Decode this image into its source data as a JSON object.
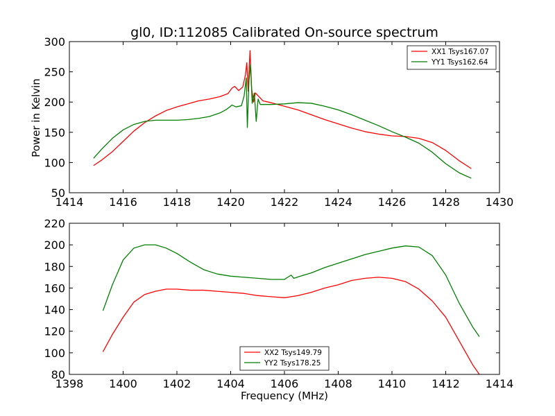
{
  "colors": {
    "red_series": "#ff0000",
    "green_series": "#007f00",
    "axis": "#000000",
    "background": "#ffffff"
  },
  "chart_data": [
    {
      "type": "line",
      "title": "gl0, ID:112085 Calibrated On-source spectrum",
      "xlabel": "",
      "ylabel": "Power in Kelvin",
      "xlim": [
        1414,
        1430
      ],
      "ylim": [
        50,
        300
      ],
      "xticks": [
        1414,
        1416,
        1418,
        1420,
        1422,
        1424,
        1426,
        1428,
        1430
      ],
      "yticks": [
        50,
        100,
        150,
        200,
        250,
        300
      ],
      "grid": false,
      "legend_position": "top-right",
      "series": [
        {
          "name": "XX1 Tsys167.07",
          "color": "#ff0000",
          "points": [
            [
              1414.9,
              95
            ],
            [
              1415.2,
              104
            ],
            [
              1415.6,
              118
            ],
            [
              1416.0,
              135
            ],
            [
              1416.4,
              152
            ],
            [
              1416.8,
              166
            ],
            [
              1417.2,
              177
            ],
            [
              1417.6,
              186
            ],
            [
              1418.0,
              192
            ],
            [
              1418.4,
              197
            ],
            [
              1418.8,
              202
            ],
            [
              1419.2,
              205
            ],
            [
              1419.6,
              209
            ],
            [
              1419.9,
              214
            ],
            [
              1420.05,
              223
            ],
            [
              1420.15,
              226
            ],
            [
              1420.3,
              219
            ],
            [
              1420.45,
              225
            ],
            [
              1420.55,
              245
            ],
            [
              1420.6,
              265
            ],
            [
              1420.65,
              218
            ],
            [
              1420.72,
              285
            ],
            [
              1420.78,
              222
            ],
            [
              1420.85,
              200
            ],
            [
              1420.92,
              215
            ],
            [
              1421.05,
              209
            ],
            [
              1421.2,
              202
            ],
            [
              1421.5,
              199
            ],
            [
              1422.0,
              193
            ],
            [
              1422.5,
              187
            ],
            [
              1423.0,
              179
            ],
            [
              1423.5,
              171
            ],
            [
              1424.0,
              164
            ],
            [
              1424.5,
              157
            ],
            [
              1425.0,
              151
            ],
            [
              1425.5,
              147
            ],
            [
              1426.0,
              144
            ],
            [
              1426.5,
              143
            ],
            [
              1427.0,
              140
            ],
            [
              1427.5,
              133
            ],
            [
              1428.0,
              120
            ],
            [
              1428.5,
              103
            ],
            [
              1428.95,
              90
            ]
          ]
        },
        {
          "name": "YY1 Tsys162.64",
          "color": "#007f00",
          "points": [
            [
              1414.9,
              107
            ],
            [
              1415.2,
              122
            ],
            [
              1415.6,
              140
            ],
            [
              1416.0,
              154
            ],
            [
              1416.4,
              163
            ],
            [
              1416.8,
              168
            ],
            [
              1417.2,
              170
            ],
            [
              1417.6,
              170
            ],
            [
              1418.0,
              170
            ],
            [
              1418.4,
              171
            ],
            [
              1418.8,
              173
            ],
            [
              1419.2,
              176
            ],
            [
              1419.6,
              182
            ],
            [
              1419.85,
              188
            ],
            [
              1420.05,
              195
            ],
            [
              1420.2,
              192
            ],
            [
              1420.4,
              194
            ],
            [
              1420.5,
              210
            ],
            [
              1420.58,
              240
            ],
            [
              1420.62,
              158
            ],
            [
              1420.68,
              235
            ],
            [
              1420.74,
              262
            ],
            [
              1420.8,
              198
            ],
            [
              1420.88,
              215
            ],
            [
              1420.95,
              168
            ],
            [
              1421.02,
              205
            ],
            [
              1421.1,
              196
            ],
            [
              1421.5,
              196
            ],
            [
              1422.0,
              197
            ],
            [
              1422.5,
              199
            ],
            [
              1423.0,
              198
            ],
            [
              1423.5,
              193
            ],
            [
              1424.0,
              187
            ],
            [
              1424.5,
              179
            ],
            [
              1425.0,
              170
            ],
            [
              1425.5,
              161
            ],
            [
              1426.0,
              151
            ],
            [
              1426.5,
              142
            ],
            [
              1427.0,
              132
            ],
            [
              1427.5,
              117
            ],
            [
              1428.0,
              98
            ],
            [
              1428.5,
              83
            ],
            [
              1428.95,
              74
            ]
          ]
        }
      ]
    },
    {
      "type": "line",
      "title": "",
      "xlabel": "Frequency (MHz)",
      "ylabel": "",
      "xlim": [
        1398,
        1414
      ],
      "ylim": [
        80,
        220
      ],
      "xticks": [
        1398,
        1400,
        1402,
        1404,
        1406,
        1408,
        1410,
        1412,
        1414
      ],
      "yticks": [
        80,
        100,
        120,
        140,
        160,
        180,
        200,
        220
      ],
      "grid": false,
      "legend_position": "bottom-center",
      "series": [
        {
          "name": "XX2 Tsys149.79",
          "color": "#ff0000",
          "points": [
            [
              1399.25,
              101
            ],
            [
              1399.6,
              117
            ],
            [
              1400.0,
              133
            ],
            [
              1400.4,
              147
            ],
            [
              1400.8,
              154
            ],
            [
              1401.2,
              157
            ],
            [
              1401.6,
              159
            ],
            [
              1402.0,
              159
            ],
            [
              1402.5,
              158
            ],
            [
              1403.0,
              158
            ],
            [
              1403.5,
              157
            ],
            [
              1404.0,
              156
            ],
            [
              1404.5,
              155
            ],
            [
              1405.0,
              153
            ],
            [
              1405.5,
              152
            ],
            [
              1406.0,
              151
            ],
            [
              1406.5,
              153
            ],
            [
              1407.0,
              156
            ],
            [
              1407.5,
              160
            ],
            [
              1408.0,
              163
            ],
            [
              1408.5,
              167
            ],
            [
              1409.0,
              169
            ],
            [
              1409.5,
              170
            ],
            [
              1410.0,
              169
            ],
            [
              1410.5,
              166
            ],
            [
              1411.0,
              159
            ],
            [
              1411.5,
              148
            ],
            [
              1412.0,
              133
            ],
            [
              1412.5,
              111
            ],
            [
              1413.0,
              89
            ],
            [
              1413.25,
              80
            ]
          ]
        },
        {
          "name": "YY2 Tsys178.25",
          "color": "#007f00",
          "points": [
            [
              1399.25,
              139
            ],
            [
              1399.6,
              163
            ],
            [
              1400.0,
              186
            ],
            [
              1400.4,
              197
            ],
            [
              1400.8,
              200
            ],
            [
              1401.2,
              200
            ],
            [
              1401.6,
              197
            ],
            [
              1402.0,
              192
            ],
            [
              1402.5,
              184
            ],
            [
              1403.0,
              177
            ],
            [
              1403.5,
              173
            ],
            [
              1404.0,
              171
            ],
            [
              1404.5,
              170
            ],
            [
              1405.0,
              169
            ],
            [
              1405.5,
              168
            ],
            [
              1406.0,
              168
            ],
            [
              1406.25,
              172
            ],
            [
              1406.35,
              169
            ],
            [
              1406.6,
              171
            ],
            [
              1407.0,
              174
            ],
            [
              1407.5,
              179
            ],
            [
              1408.0,
              183
            ],
            [
              1408.5,
              187
            ],
            [
              1409.0,
              191
            ],
            [
              1409.5,
              194
            ],
            [
              1410.0,
              197
            ],
            [
              1410.5,
              199
            ],
            [
              1411.0,
              198
            ],
            [
              1411.5,
              190
            ],
            [
              1412.0,
              172
            ],
            [
              1412.5,
              146
            ],
            [
              1413.0,
              124
            ],
            [
              1413.25,
              115
            ]
          ]
        }
      ]
    }
  ]
}
